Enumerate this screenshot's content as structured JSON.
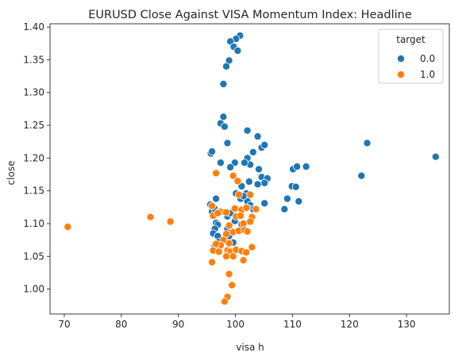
{
  "chart_data": {
    "type": "scatter",
    "title": "EURUSD Close Against VISA Momentum Index: Headline",
    "xlabel": "visa h",
    "ylabel": "close",
    "xlim": [
      67.5,
      137.5
    ],
    "ylim": [
      0.962,
      1.405
    ],
    "x_ticks": [
      70,
      80,
      90,
      100,
      110,
      120,
      130
    ],
    "y_ticks": [
      1.0,
      1.05,
      1.1,
      1.15,
      1.2,
      1.25,
      1.3,
      1.35,
      1.4
    ],
    "grid": false,
    "legend": {
      "title": "target",
      "position": "top-right"
    },
    "series": [
      {
        "name": "0.0",
        "color": "#1f77b4",
        "points": [
          [
            100.8,
            1.387
          ],
          [
            100.1,
            1.382
          ],
          [
            99.1,
            1.378
          ],
          [
            99.7,
            1.37
          ],
          [
            100.4,
            1.364
          ],
          [
            98.9,
            1.349
          ],
          [
            98.4,
            1.34
          ],
          [
            97.9,
            1.313
          ],
          [
            97.9,
            1.263
          ],
          [
            97.4,
            1.253
          ],
          [
            98.1,
            1.248
          ],
          [
            102.1,
            1.242
          ],
          [
            103.9,
            1.233
          ],
          [
            98.6,
            1.223
          ],
          [
            104.6,
            1.216
          ],
          [
            105.1,
            1.22
          ],
          [
            103.1,
            1.209
          ],
          [
            95.7,
            1.207
          ],
          [
            95.9,
            1.21
          ],
          [
            102.1,
            1.2
          ],
          [
            102.6,
            1.19
          ],
          [
            104.1,
            1.183
          ],
          [
            99.9,
            1.193
          ],
          [
            99.1,
            1.186
          ],
          [
            101.6,
            1.193
          ],
          [
            97.4,
            1.193
          ],
          [
            104.6,
            1.171
          ],
          [
            105.6,
            1.169
          ],
          [
            105.1,
            1.162
          ],
          [
            103.9,
            1.16
          ],
          [
            101.1,
            1.157
          ],
          [
            102.4,
            1.164
          ],
          [
            110.1,
            1.183
          ],
          [
            110.8,
            1.187
          ],
          [
            112.4,
            1.187
          ],
          [
            109.9,
            1.157
          ],
          [
            110.6,
            1.156
          ],
          [
            122.1,
            1.173
          ],
          [
            123.1,
            1.223
          ],
          [
            135.1,
            1.202
          ],
          [
            109.1,
            1.138
          ],
          [
            111.1,
            1.134
          ],
          [
            108.6,
            1.122
          ],
          [
            105.1,
            1.131
          ],
          [
            100.1,
            1.146
          ],
          [
            101.9,
            1.146
          ],
          [
            102.1,
            1.134
          ],
          [
            100.9,
            1.138
          ],
          [
            101.4,
            1.142
          ],
          [
            96.6,
            1.138
          ],
          [
            95.6,
            1.129
          ],
          [
            95.9,
            1.122
          ],
          [
            95.9,
            1.118
          ],
          [
            96.4,
            1.122
          ],
          [
            97.1,
            1.118
          ],
          [
            98.6,
            1.111
          ],
          [
            99.1,
            1.116
          ],
          [
            101.1,
            1.12
          ],
          [
            102.6,
            1.128
          ],
          [
            103.1,
            1.122
          ],
          [
            96.6,
            1.101
          ],
          [
            96.9,
            1.098
          ],
          [
            99.9,
            1.104
          ],
          [
            101.1,
            1.099
          ],
          [
            98.6,
            1.092
          ],
          [
            96.4,
            1.092
          ],
          [
            96.1,
            1.085
          ],
          [
            96.9,
            1.081
          ],
          [
            97.1,
            1.072
          ],
          [
            96.4,
            1.066
          ],
          [
            99.1,
            1.086
          ],
          [
            98.9,
            1.081
          ],
          [
            99.6,
            1.071
          ],
          [
            102.1,
            1.124
          ]
        ]
      },
      {
        "name": "1.0",
        "color": "#ff7f0e",
        "points": [
          [
            70.6,
            1.095
          ],
          [
            85.1,
            1.11
          ],
          [
            88.6,
            1.103
          ],
          [
            96.6,
            1.177
          ],
          [
            99.6,
            1.173
          ],
          [
            100.4,
            1.165
          ],
          [
            102.6,
            1.144
          ],
          [
            100.6,
            1.144
          ],
          [
            95.9,
            1.127
          ],
          [
            97.4,
            1.118
          ],
          [
            98.4,
            1.117
          ],
          [
            96.1,
            1.112
          ],
          [
            99.9,
            1.123
          ],
          [
            101.1,
            1.121
          ],
          [
            101.9,
            1.124
          ],
          [
            103.6,
            1.122
          ],
          [
            100.1,
            1.111
          ],
          [
            100.9,
            1.112
          ],
          [
            102.9,
            1.11
          ],
          [
            101.4,
            1.1
          ],
          [
            102.6,
            1.103
          ],
          [
            98.9,
            1.097
          ],
          [
            99.6,
            1.087
          ],
          [
            100.6,
            1.089
          ],
          [
            101.6,
            1.09
          ],
          [
            102.1,
            1.088
          ],
          [
            98.4,
            1.084
          ],
          [
            97.9,
            1.075
          ],
          [
            98.9,
            1.07
          ],
          [
            97.4,
            1.067
          ],
          [
            96.6,
            1.069
          ],
          [
            96.1,
            1.059
          ],
          [
            97.1,
            1.057
          ],
          [
            98.6,
            1.059
          ],
          [
            99.1,
            1.057
          ],
          [
            100.1,
            1.06
          ],
          [
            101.1,
            1.058
          ],
          [
            102.9,
            1.064
          ],
          [
            101.9,
            1.056
          ],
          [
            98.4,
            1.05
          ],
          [
            99.6,
            1.05
          ],
          [
            101.4,
            1.044
          ],
          [
            95.9,
            1.041
          ],
          [
            98.9,
            1.023
          ],
          [
            99.4,
            1.006
          ],
          [
            98.6,
            0.988
          ],
          [
            98.1,
            0.981
          ],
          [
            96.9,
            1.116
          ]
        ]
      }
    ]
  }
}
